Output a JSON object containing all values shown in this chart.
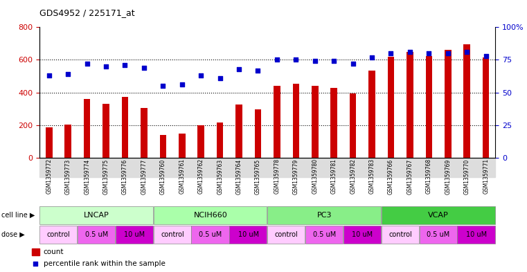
{
  "title": "GDS4952 / 225171_at",
  "samples": [
    "GSM1359772",
    "GSM1359773",
    "GSM1359774",
    "GSM1359775",
    "GSM1359776",
    "GSM1359777",
    "GSM1359760",
    "GSM1359761",
    "GSM1359762",
    "GSM1359763",
    "GSM1359764",
    "GSM1359765",
    "GSM1359778",
    "GSM1359779",
    "GSM1359780",
    "GSM1359781",
    "GSM1359782",
    "GSM1359783",
    "GSM1359766",
    "GSM1359767",
    "GSM1359768",
    "GSM1359769",
    "GSM1359770",
    "GSM1359771"
  ],
  "counts": [
    185,
    205,
    360,
    330,
    375,
    305,
    140,
    150,
    200,
    215,
    325,
    295,
    440,
    455,
    440,
    430,
    395,
    535,
    620,
    650,
    625,
    660,
    695,
    615
  ],
  "percentiles_as_counts": [
    504,
    512,
    576,
    560,
    568,
    552,
    440,
    448,
    504,
    488,
    544,
    536,
    600,
    600,
    592,
    592,
    576,
    616,
    640,
    648,
    640,
    640,
    648,
    624
  ],
  "bar_color": "#cc0000",
  "dot_color": "#0000cc",
  "cell_lines": [
    {
      "label": "LNCAP",
      "start": 0,
      "end": 6,
      "color": "#ccffcc"
    },
    {
      "label": "NCIH660",
      "start": 6,
      "end": 12,
      "color": "#aaffaa"
    },
    {
      "label": "PC3",
      "start": 12,
      "end": 18,
      "color": "#88ee88"
    },
    {
      "label": "VCAP",
      "start": 18,
      "end": 24,
      "color": "#44cc44"
    }
  ],
  "doses": [
    {
      "label": "control",
      "start": 0,
      "end": 2,
      "color": "#ffccff"
    },
    {
      "label": "0.5 uM",
      "start": 2,
      "end": 4,
      "color": "#ee66ee"
    },
    {
      "label": "10 uM",
      "start": 4,
      "end": 6,
      "color": "#cc00cc"
    },
    {
      "label": "control",
      "start": 6,
      "end": 8,
      "color": "#ffccff"
    },
    {
      "label": "0.5 uM",
      "start": 8,
      "end": 10,
      "color": "#ee66ee"
    },
    {
      "label": "10 uM",
      "start": 10,
      "end": 12,
      "color": "#cc00cc"
    },
    {
      "label": "control",
      "start": 12,
      "end": 14,
      "color": "#ffccff"
    },
    {
      "label": "0.5 uM",
      "start": 14,
      "end": 16,
      "color": "#ee66ee"
    },
    {
      "label": "10 uM",
      "start": 16,
      "end": 18,
      "color": "#cc00cc"
    },
    {
      "label": "control",
      "start": 18,
      "end": 20,
      "color": "#ffccff"
    },
    {
      "label": "0.5 uM",
      "start": 20,
      "end": 22,
      "color": "#ee66ee"
    },
    {
      "label": "10 uM",
      "start": 22,
      "end": 24,
      "color": "#cc00cc"
    }
  ],
  "ylim_left": [
    0,
    800
  ],
  "yticks_left": [
    0,
    200,
    400,
    600,
    800
  ],
  "yticks_right": [
    0,
    25,
    50,
    75,
    100
  ],
  "yticklabels_right": [
    "0",
    "25",
    "50",
    "75",
    "100%"
  ],
  "bg_color": "#ffffff",
  "ticklabel_bg": "#dddddd",
  "legend_count_color": "#cc0000",
  "legend_dot_color": "#0000cc"
}
